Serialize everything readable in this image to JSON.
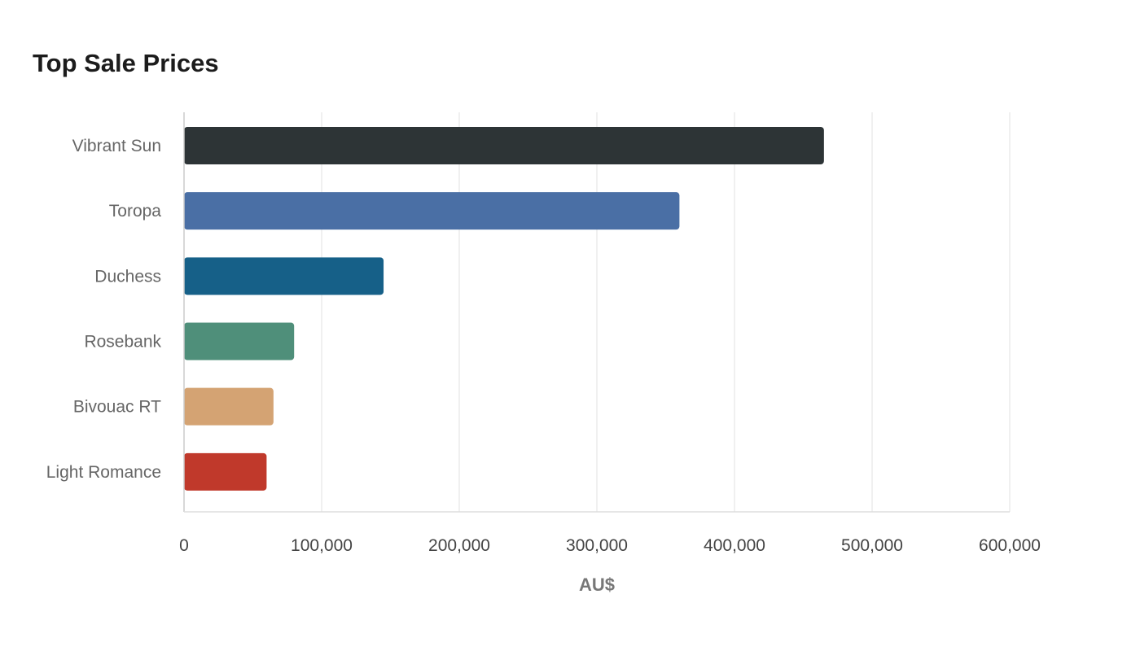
{
  "chart_data": {
    "type": "bar",
    "orientation": "horizontal",
    "title": "Top Sale Prices",
    "xlabel": "AU$",
    "ylabel": "",
    "categories": [
      "Vibrant Sun",
      "Toropa",
      "Duchess",
      "Rosebank",
      "Bivouac RT",
      "Light Romance"
    ],
    "values": [
      465000,
      360000,
      145000,
      80000,
      65000,
      60000
    ],
    "colors": [
      "#2d3436",
      "#4a6fa5",
      "#166088",
      "#4f8f7a",
      "#d4a373",
      "#c0392b"
    ],
    "xlim": [
      0,
      600000
    ],
    "xticks": [
      "0",
      "100,000",
      "200,000",
      "300,000",
      "400,000",
      "500,000",
      "600,000"
    ],
    "grid": true,
    "legend": "none"
  }
}
